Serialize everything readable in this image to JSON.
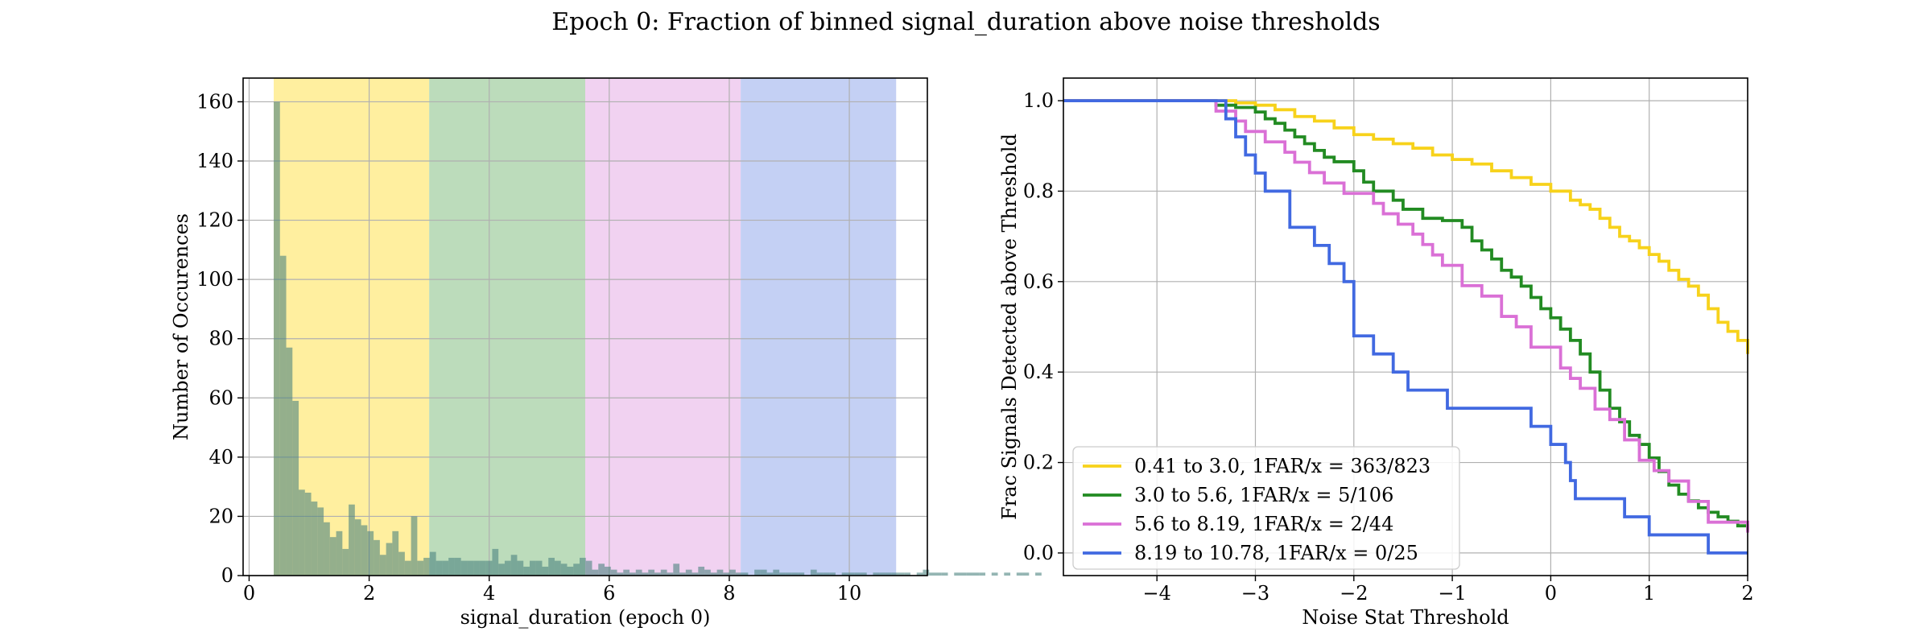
{
  "figure": {
    "title": "Epoch 0: Fraction of binned signal_duration above noise thresholds"
  },
  "chart_data": [
    {
      "type": "bar",
      "subtype": "histogram",
      "xlabel": "signal_duration (epoch 0)",
      "ylabel": "Number of Occurences",
      "xlim": [
        -0.1,
        11.3
      ],
      "ylim": [
        0,
        168
      ],
      "xticks": [
        0,
        2,
        4,
        6,
        8,
        10
      ],
      "yticks": [
        0,
        20,
        40,
        60,
        80,
        100,
        120,
        140,
        160
      ],
      "grid": true,
      "bands": [
        {
          "range": [
            0.41,
            3.0
          ],
          "color": "#ffef9f"
        },
        {
          "range": [
            3.0,
            5.6
          ],
          "color": "#bcdcbb"
        },
        {
          "range": [
            5.6,
            8.19
          ],
          "color": "#f1d2f1"
        },
        {
          "range": [
            8.19,
            10.78
          ],
          "color": "#c4d0f4"
        }
      ],
      "bar_color": "#4d8380",
      "bar_opacity": 0.6,
      "bin_start": 0.41,
      "bin_width": 0.104,
      "values": [
        160,
        108,
        77,
        59,
        29,
        28,
        25,
        23,
        18,
        13,
        15,
        9,
        24,
        19,
        17,
        15,
        12,
        7,
        11,
        15,
        8,
        5,
        20,
        5,
        6,
        8,
        5,
        5,
        6,
        6,
        5,
        5,
        5,
        5,
        5,
        9,
        4,
        5,
        7,
        5,
        3,
        5,
        5,
        3,
        6,
        5,
        4,
        3,
        4,
        6,
        5,
        2,
        4,
        3,
        2,
        1,
        2,
        1,
        2,
        1,
        2,
        1,
        2,
        1,
        4,
        1,
        2,
        1,
        3,
        2,
        1,
        2,
        1,
        2,
        1,
        1,
        0,
        2,
        2,
        1,
        2,
        1,
        1,
        1,
        1,
        0,
        2,
        1,
        1,
        1,
        0,
        1,
        1,
        1,
        1,
        0,
        1,
        1,
        1,
        1,
        1,
        1,
        0,
        1,
        2,
        1,
        1,
        1,
        0,
        1,
        1,
        1,
        1,
        1,
        0,
        1,
        0,
        1,
        0,
        1,
        1,
        0,
        1
      ]
    },
    {
      "type": "line",
      "subtype": "step",
      "xlabel": "Noise Stat Threshold",
      "ylabel": "Frac Signals Detected above Threshold",
      "xlim": [
        -4.95,
        2.0
      ],
      "ylim": [
        -0.05,
        1.05
      ],
      "xticks": [
        -4,
        -3,
        -2,
        -1,
        0,
        1,
        2
      ],
      "xticklabels": [
        "−4",
        "−3",
        "−2",
        "−1",
        "0",
        "1",
        "2"
      ],
      "yticks": [
        0.0,
        0.2,
        0.4,
        0.6,
        0.8,
        1.0
      ],
      "yticklabels": [
        "0.0",
        "0.2",
        "0.4",
        "0.6",
        "0.8",
        "1.0"
      ],
      "grid": true,
      "legend_position": "lower-left",
      "series": [
        {
          "name": "0.41 to 3.0, 1FAR/x = 363/823",
          "color": "#f7d21b",
          "x": [
            -4.95,
            -3.5,
            -3.2,
            -3.0,
            -2.8,
            -2.6,
            -2.4,
            -2.2,
            -2.0,
            -1.8,
            -1.6,
            -1.4,
            -1.2,
            -1.0,
            -0.8,
            -0.6,
            -0.4,
            -0.2,
            0.0,
            0.2,
            0.3,
            0.4,
            0.5,
            0.6,
            0.7,
            0.8,
            0.9,
            1.0,
            1.1,
            1.2,
            1.3,
            1.4,
            1.5,
            1.6,
            1.7,
            1.8,
            1.9,
            2.0
          ],
          "y": [
            1.0,
            1.0,
            0.995,
            0.99,
            0.98,
            0.965,
            0.955,
            0.94,
            0.925,
            0.915,
            0.905,
            0.895,
            0.88,
            0.87,
            0.86,
            0.845,
            0.83,
            0.815,
            0.8,
            0.78,
            0.77,
            0.76,
            0.74,
            0.72,
            0.7,
            0.69,
            0.675,
            0.66,
            0.645,
            0.625,
            0.605,
            0.59,
            0.57,
            0.54,
            0.51,
            0.49,
            0.47,
            0.44
          ]
        },
        {
          "name": "3.0 to 5.6, 1FAR/x = 5/106",
          "color": "#228b22",
          "x": [
            -4.95,
            -3.7,
            -3.4,
            -3.2,
            -3.0,
            -2.9,
            -2.8,
            -2.7,
            -2.6,
            -2.5,
            -2.4,
            -2.3,
            -2.2,
            -2.0,
            -1.9,
            -1.8,
            -1.6,
            -1.5,
            -1.3,
            -1.1,
            -0.9,
            -0.8,
            -0.7,
            -0.6,
            -0.5,
            -0.4,
            -0.3,
            -0.2,
            -0.1,
            0.0,
            0.1,
            0.2,
            0.3,
            0.4,
            0.5,
            0.6,
            0.7,
            0.8,
            0.9,
            1.0,
            1.1,
            1.2,
            1.3,
            1.4,
            1.5,
            1.6,
            1.7,
            1.8,
            1.9,
            2.0
          ],
          "y": [
            1.0,
            1.0,
            0.99,
            0.985,
            0.975,
            0.96,
            0.95,
            0.935,
            0.92,
            0.905,
            0.89,
            0.875,
            0.865,
            0.845,
            0.82,
            0.8,
            0.78,
            0.76,
            0.74,
            0.735,
            0.72,
            0.69,
            0.67,
            0.65,
            0.625,
            0.61,
            0.59,
            0.565,
            0.54,
            0.52,
            0.495,
            0.47,
            0.44,
            0.4,
            0.36,
            0.32,
            0.29,
            0.26,
            0.24,
            0.21,
            0.18,
            0.15,
            0.13,
            0.115,
            0.1,
            0.09,
            0.08,
            0.07,
            0.06,
            0.05
          ]
        },
        {
          "name": "5.6 to 8.19, 1FAR/x = 2/44",
          "color": "#da70d6",
          "x": [
            -4.95,
            -3.6,
            -3.4,
            -3.2,
            -3.1,
            -2.9,
            -2.7,
            -2.6,
            -2.45,
            -2.3,
            -2.1,
            -2.0,
            -1.8,
            -1.7,
            -1.55,
            -1.4,
            -1.3,
            -1.2,
            -1.1,
            -0.9,
            -0.7,
            -0.5,
            -0.35,
            -0.2,
            -0.05,
            0.1,
            0.2,
            0.3,
            0.45,
            0.6,
            0.75,
            0.9,
            1.05,
            1.2,
            1.4,
            1.6,
            2.0
          ],
          "y": [
            1.0,
            1.0,
            0.977,
            0.955,
            0.932,
            0.909,
            0.886,
            0.864,
            0.841,
            0.818,
            0.795,
            0.795,
            0.773,
            0.75,
            0.727,
            0.705,
            0.682,
            0.659,
            0.636,
            0.591,
            0.568,
            0.523,
            0.5,
            0.455,
            0.455,
            0.409,
            0.386,
            0.364,
            0.318,
            0.295,
            0.25,
            0.205,
            0.182,
            0.159,
            0.114,
            0.068,
            0.045
          ]
        },
        {
          "name": "8.19 to 10.78, 1FAR/x = 0/25",
          "color": "#4169e1",
          "x": [
            -4.95,
            -3.4,
            -3.3,
            -3.2,
            -3.1,
            -3.0,
            -2.9,
            -2.65,
            -2.4,
            -2.25,
            -2.1,
            -2.0,
            -1.8,
            -1.6,
            -1.45,
            -1.3,
            -1.05,
            -0.5,
            -0.2,
            0.0,
            0.15,
            0.2,
            0.25,
            0.3,
            0.5,
            0.75,
            1.0,
            1.6,
            2.0
          ],
          "y": [
            1.0,
            1.0,
            0.96,
            0.92,
            0.88,
            0.84,
            0.8,
            0.72,
            0.68,
            0.64,
            0.6,
            0.48,
            0.44,
            0.4,
            0.36,
            0.36,
            0.32,
            0.32,
            0.28,
            0.24,
            0.2,
            0.16,
            0.12,
            0.12,
            0.12,
            0.08,
            0.04,
            0.0,
            0.0
          ]
        }
      ]
    }
  ]
}
